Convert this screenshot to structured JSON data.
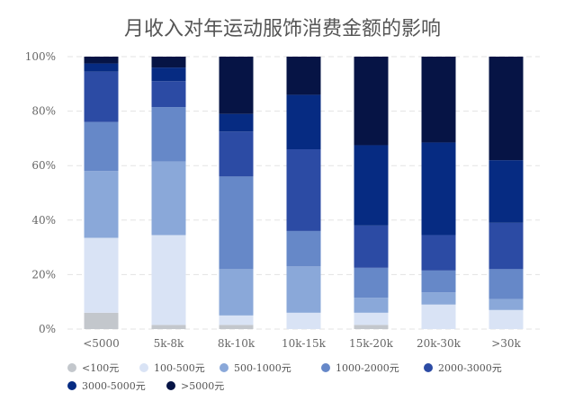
{
  "chart_data": {
    "type": "bar",
    "stacked": true,
    "percent": true,
    "title": "月收入对年运动服饰消费金额的影响",
    "categories": [
      "<5000",
      "5k-8k",
      "8k-10k",
      "10k-15k",
      "15k-20k",
      "20k-30k",
      ">30k"
    ],
    "y_ticks": [
      "0%",
      "20%",
      "40%",
      "60%",
      "80%",
      "100%"
    ],
    "ylim": [
      0,
      100
    ],
    "grid": true,
    "legend_position": "bottom",
    "series": [
      {
        "name": "<100元",
        "color": "#c3c7cc",
        "values": [
          6,
          1.5,
          1.5,
          0,
          1.5,
          0,
          0
        ]
      },
      {
        "name": "100-500元",
        "color": "#d9e3f5",
        "values": [
          27.5,
          33,
          3.5,
          6,
          4.5,
          9,
          7
        ]
      },
      {
        "name": "500-1000元",
        "color": "#8aa8d9",
        "values": [
          24.5,
          27,
          17,
          17,
          5.5,
          4.5,
          4
        ]
      },
      {
        "name": "1000-2000元",
        "color": "#6688c8",
        "values": [
          18,
          20,
          34,
          13,
          11,
          8,
          11
        ]
      },
      {
        "name": "2000-3000元",
        "color": "#2c4ba4",
        "values": [
          18.5,
          9.5,
          16.5,
          30,
          15.5,
          13,
          17
        ]
      },
      {
        "name": "3000-5000元",
        "color": "#062b82",
        "values": [
          3,
          5,
          6.5,
          20,
          29.5,
          34,
          23
        ]
      },
      {
        "name": ">5000元",
        "color": "#061445",
        "values": [
          2.5,
          4,
          21,
          14,
          32.5,
          31.5,
          38
        ]
      }
    ]
  }
}
